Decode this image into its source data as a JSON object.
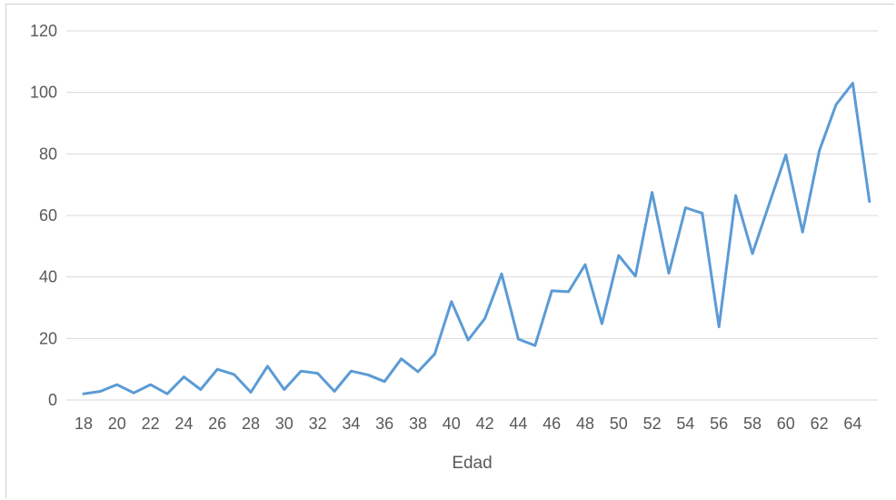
{
  "chart_data": {
    "type": "line",
    "title": "",
    "xlabel": "Edad",
    "ylabel": "",
    "ylim": [
      0,
      120
    ],
    "yticks": [
      0,
      20,
      40,
      60,
      80,
      100,
      120
    ],
    "xticks": [
      18,
      20,
      22,
      24,
      26,
      28,
      30,
      32,
      34,
      36,
      38,
      40,
      42,
      44,
      46,
      48,
      50,
      52,
      54,
      56,
      58,
      60,
      62,
      64
    ],
    "xlim": [
      18,
      65
    ],
    "grid": "horizontal",
    "legend": "none",
    "line_color": "#5b9bd5",
    "x": [
      18,
      19,
      20,
      21,
      22,
      23,
      24,
      25,
      26,
      27,
      28,
      29,
      30,
      31,
      32,
      33,
      34,
      35,
      36,
      37,
      38,
      39,
      40,
      41,
      42,
      43,
      44,
      45,
      46,
      47,
      48,
      49,
      50,
      51,
      52,
      53,
      54,
      55,
      56,
      57,
      58,
      59,
      60,
      61,
      62,
      63,
      64,
      65
    ],
    "series": [
      {
        "values": [
          2,
          2.8,
          5,
          2.3,
          5,
          2,
          7.5,
          3.4,
          10,
          8.3,
          2.5,
          11,
          3.4,
          9.4,
          8.7,
          2.8,
          9.4,
          8.2,
          6,
          13.4,
          9.2,
          15,
          32,
          19.5,
          26.5,
          41,
          19.8,
          17.7,
          35.5,
          35.2,
          44,
          24.8,
          47,
          40.3,
          67.5,
          41.2,
          62.5,
          60.7,
          23.8,
          66.5,
          47.6,
          63.7,
          79.7,
          54.6,
          81,
          96,
          103,
          64.5
        ]
      }
    ]
  }
}
